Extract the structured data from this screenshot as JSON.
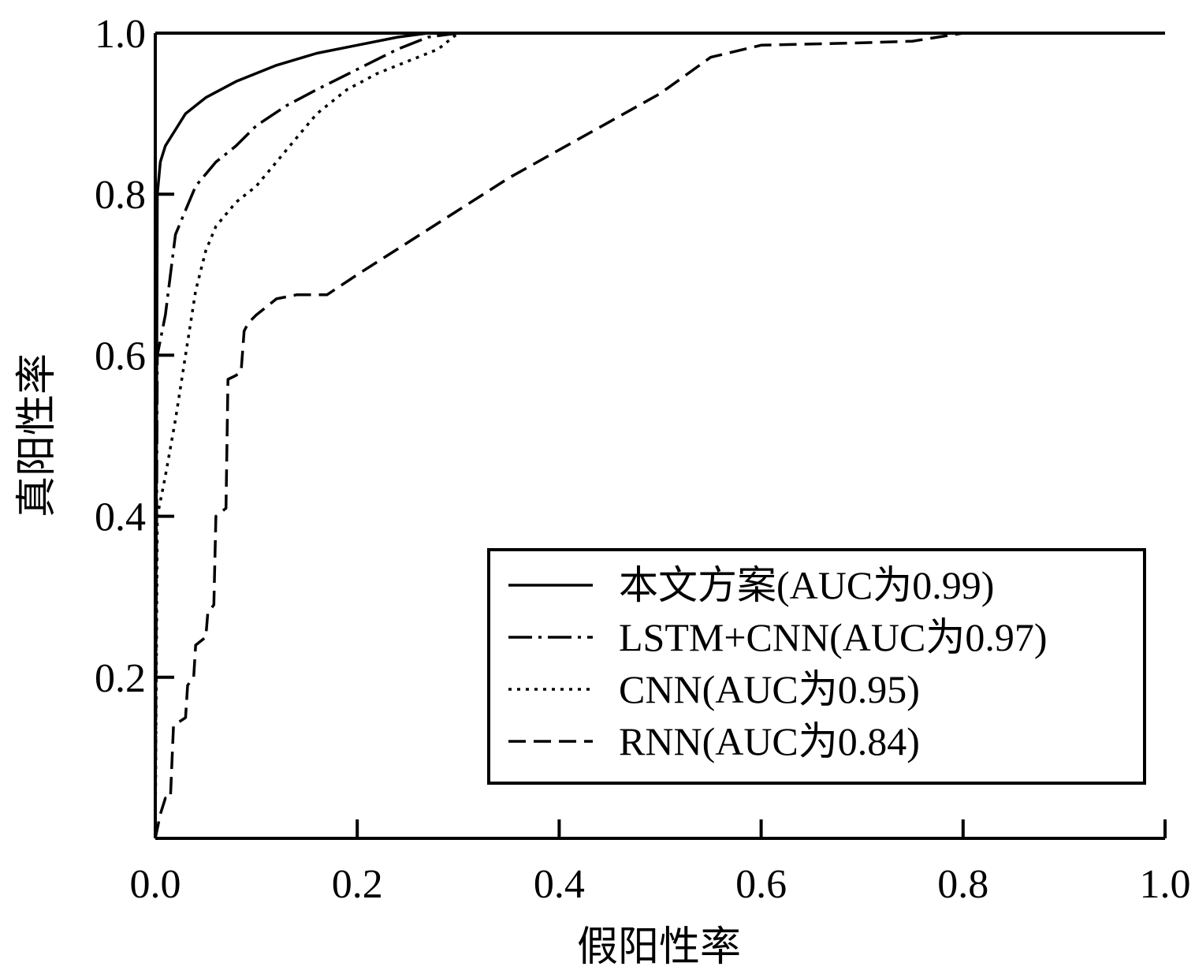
{
  "chart_data": {
    "type": "line",
    "xlabel": "假阳性率",
    "ylabel": "真阳性率",
    "xlim": [
      0,
      1
    ],
    "ylim": [
      0,
      1
    ],
    "xticks": [
      "0.0",
      "0.2",
      "0.4",
      "0.6",
      "0.8",
      "1.0"
    ],
    "yticks": [
      "0.2",
      "0.4",
      "0.6",
      "0.8",
      "1.0"
    ],
    "grid": false,
    "legend_position": "bottom-right",
    "series": [
      {
        "name": "本文方案(AUC为0.99)",
        "style": "solid",
        "points": [
          [
            0,
            0
          ],
          [
            0.002,
            0.8
          ],
          [
            0.005,
            0.84
          ],
          [
            0.01,
            0.86
          ],
          [
            0.02,
            0.88
          ],
          [
            0.03,
            0.9
          ],
          [
            0.05,
            0.92
          ],
          [
            0.08,
            0.94
          ],
          [
            0.12,
            0.96
          ],
          [
            0.16,
            0.975
          ],
          [
            0.2,
            0.985
          ],
          [
            0.24,
            0.995
          ],
          [
            0.27,
            1.0
          ],
          [
            1.0,
            1.0
          ]
        ]
      },
      {
        "name": "LSTM+CNN(AUC为0.97)",
        "style": "dashdot",
        "points": [
          [
            0,
            0
          ],
          [
            0.002,
            0.6
          ],
          [
            0.01,
            0.65
          ],
          [
            0.02,
            0.75
          ],
          [
            0.03,
            0.78
          ],
          [
            0.04,
            0.81
          ],
          [
            0.06,
            0.84
          ],
          [
            0.08,
            0.86
          ],
          [
            0.1,
            0.885
          ],
          [
            0.13,
            0.91
          ],
          [
            0.16,
            0.93
          ],
          [
            0.2,
            0.955
          ],
          [
            0.24,
            0.98
          ],
          [
            0.27,
            0.995
          ],
          [
            0.3,
            1.0
          ],
          [
            1.0,
            1.0
          ]
        ]
      },
      {
        "name": "CNN(AUC为0.95)",
        "style": "dotted",
        "points": [
          [
            0,
            0
          ],
          [
            0.002,
            0.4
          ],
          [
            0.01,
            0.45
          ],
          [
            0.02,
            0.52
          ],
          [
            0.03,
            0.6
          ],
          [
            0.04,
            0.68
          ],
          [
            0.05,
            0.73
          ],
          [
            0.06,
            0.76
          ],
          [
            0.08,
            0.79
          ],
          [
            0.1,
            0.81
          ],
          [
            0.12,
            0.84
          ],
          [
            0.14,
            0.87
          ],
          [
            0.16,
            0.9
          ],
          [
            0.19,
            0.93
          ],
          [
            0.22,
            0.95
          ],
          [
            0.25,
            0.965
          ],
          [
            0.28,
            0.98
          ],
          [
            0.3,
            1.0
          ],
          [
            1.0,
            1.0
          ]
        ]
      },
      {
        "name": "RNN(AUC为0.84)",
        "style": "dashed",
        "points": [
          [
            0,
            0
          ],
          [
            0.005,
            0.03
          ],
          [
            0.01,
            0.05
          ],
          [
            0.015,
            0.05
          ],
          [
            0.018,
            0.14
          ],
          [
            0.03,
            0.15
          ],
          [
            0.032,
            0.19
          ],
          [
            0.038,
            0.2
          ],
          [
            0.04,
            0.24
          ],
          [
            0.05,
            0.25
          ],
          [
            0.052,
            0.28
          ],
          [
            0.058,
            0.29
          ],
          [
            0.06,
            0.4
          ],
          [
            0.07,
            0.41
          ],
          [
            0.072,
            0.57
          ],
          [
            0.08,
            0.575
          ],
          [
            0.085,
            0.58
          ],
          [
            0.088,
            0.63
          ],
          [
            0.092,
            0.64
          ],
          [
            0.1,
            0.65
          ],
          [
            0.12,
            0.67
          ],
          [
            0.14,
            0.675
          ],
          [
            0.17,
            0.675
          ],
          [
            0.2,
            0.7
          ],
          [
            0.25,
            0.74
          ],
          [
            0.3,
            0.78
          ],
          [
            0.35,
            0.82
          ],
          [
            0.4,
            0.855
          ],
          [
            0.45,
            0.89
          ],
          [
            0.5,
            0.925
          ],
          [
            0.55,
            0.97
          ],
          [
            0.6,
            0.985
          ],
          [
            0.7,
            0.988
          ],
          [
            0.75,
            0.99
          ],
          [
            0.8,
            1.0
          ],
          [
            1.0,
            1.0
          ]
        ]
      }
    ]
  }
}
